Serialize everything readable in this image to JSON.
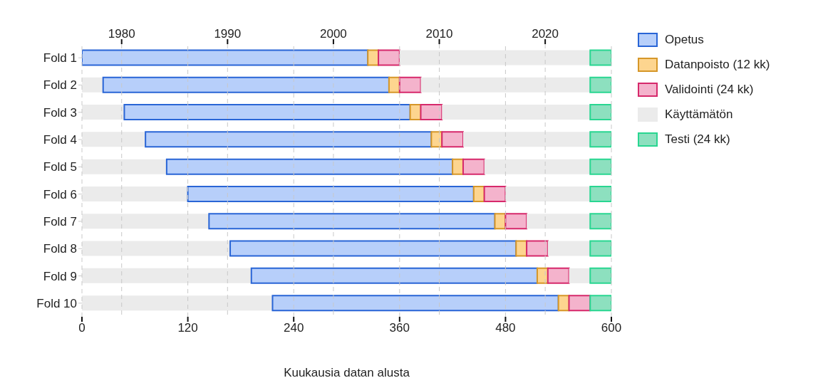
{
  "chart_data": {
    "type": "bar",
    "orientation": "horizontal",
    "stacked": true,
    "xlabel": "Kuukausia datan alusta",
    "categories": [
      "Fold 1",
      "Fold 2",
      "Fold 3",
      "Fold 4",
      "Fold 5",
      "Fold 6",
      "Fold 7",
      "Fold 8",
      "Fold 9",
      "Fold 10"
    ],
    "series": [
      {
        "color": "#ebebeb",
        "values": [
          0,
          24,
          48,
          72,
          96,
          120,
          144,
          168,
          192,
          216
        ]
      },
      {
        "name": "Opetus",
        "color": "#b7cffa",
        "values": [
          324,
          324,
          324,
          324,
          324,
          324,
          324,
          324,
          324,
          324
        ]
      },
      {
        "name": "Datanpoisto (12 kk)",
        "color": "#fdd58f",
        "values": [
          12,
          12,
          12,
          12,
          12,
          12,
          12,
          12,
          12,
          12
        ]
      },
      {
        "name": "Validointi (24 kk)",
        "color": "#f4b3cc",
        "values": [
          24,
          24,
          24,
          24,
          24,
          24,
          24,
          24,
          24,
          24
        ]
      },
      {
        "name": "Käyttämätön",
        "color": "#ebebeb",
        "values": [
          216,
          192,
          168,
          144,
          120,
          96,
          72,
          48,
          24,
          0
        ]
      },
      {
        "name": "Testi (24 kk)",
        "color": "#8de0bf",
        "values": [
          24,
          24,
          24,
          24,
          24,
          24,
          24,
          24,
          24,
          24
        ]
      }
    ],
    "xlim": [
      0,
      600
    ],
    "xticks": [
      0,
      120,
      240,
      360,
      480,
      600
    ],
    "x2lim": [
      1976.25,
      2026.25
    ],
    "x2ticks": [
      1980,
      1990,
      2000,
      2010,
      2020
    ],
    "grid": "x",
    "legend": "right"
  }
}
